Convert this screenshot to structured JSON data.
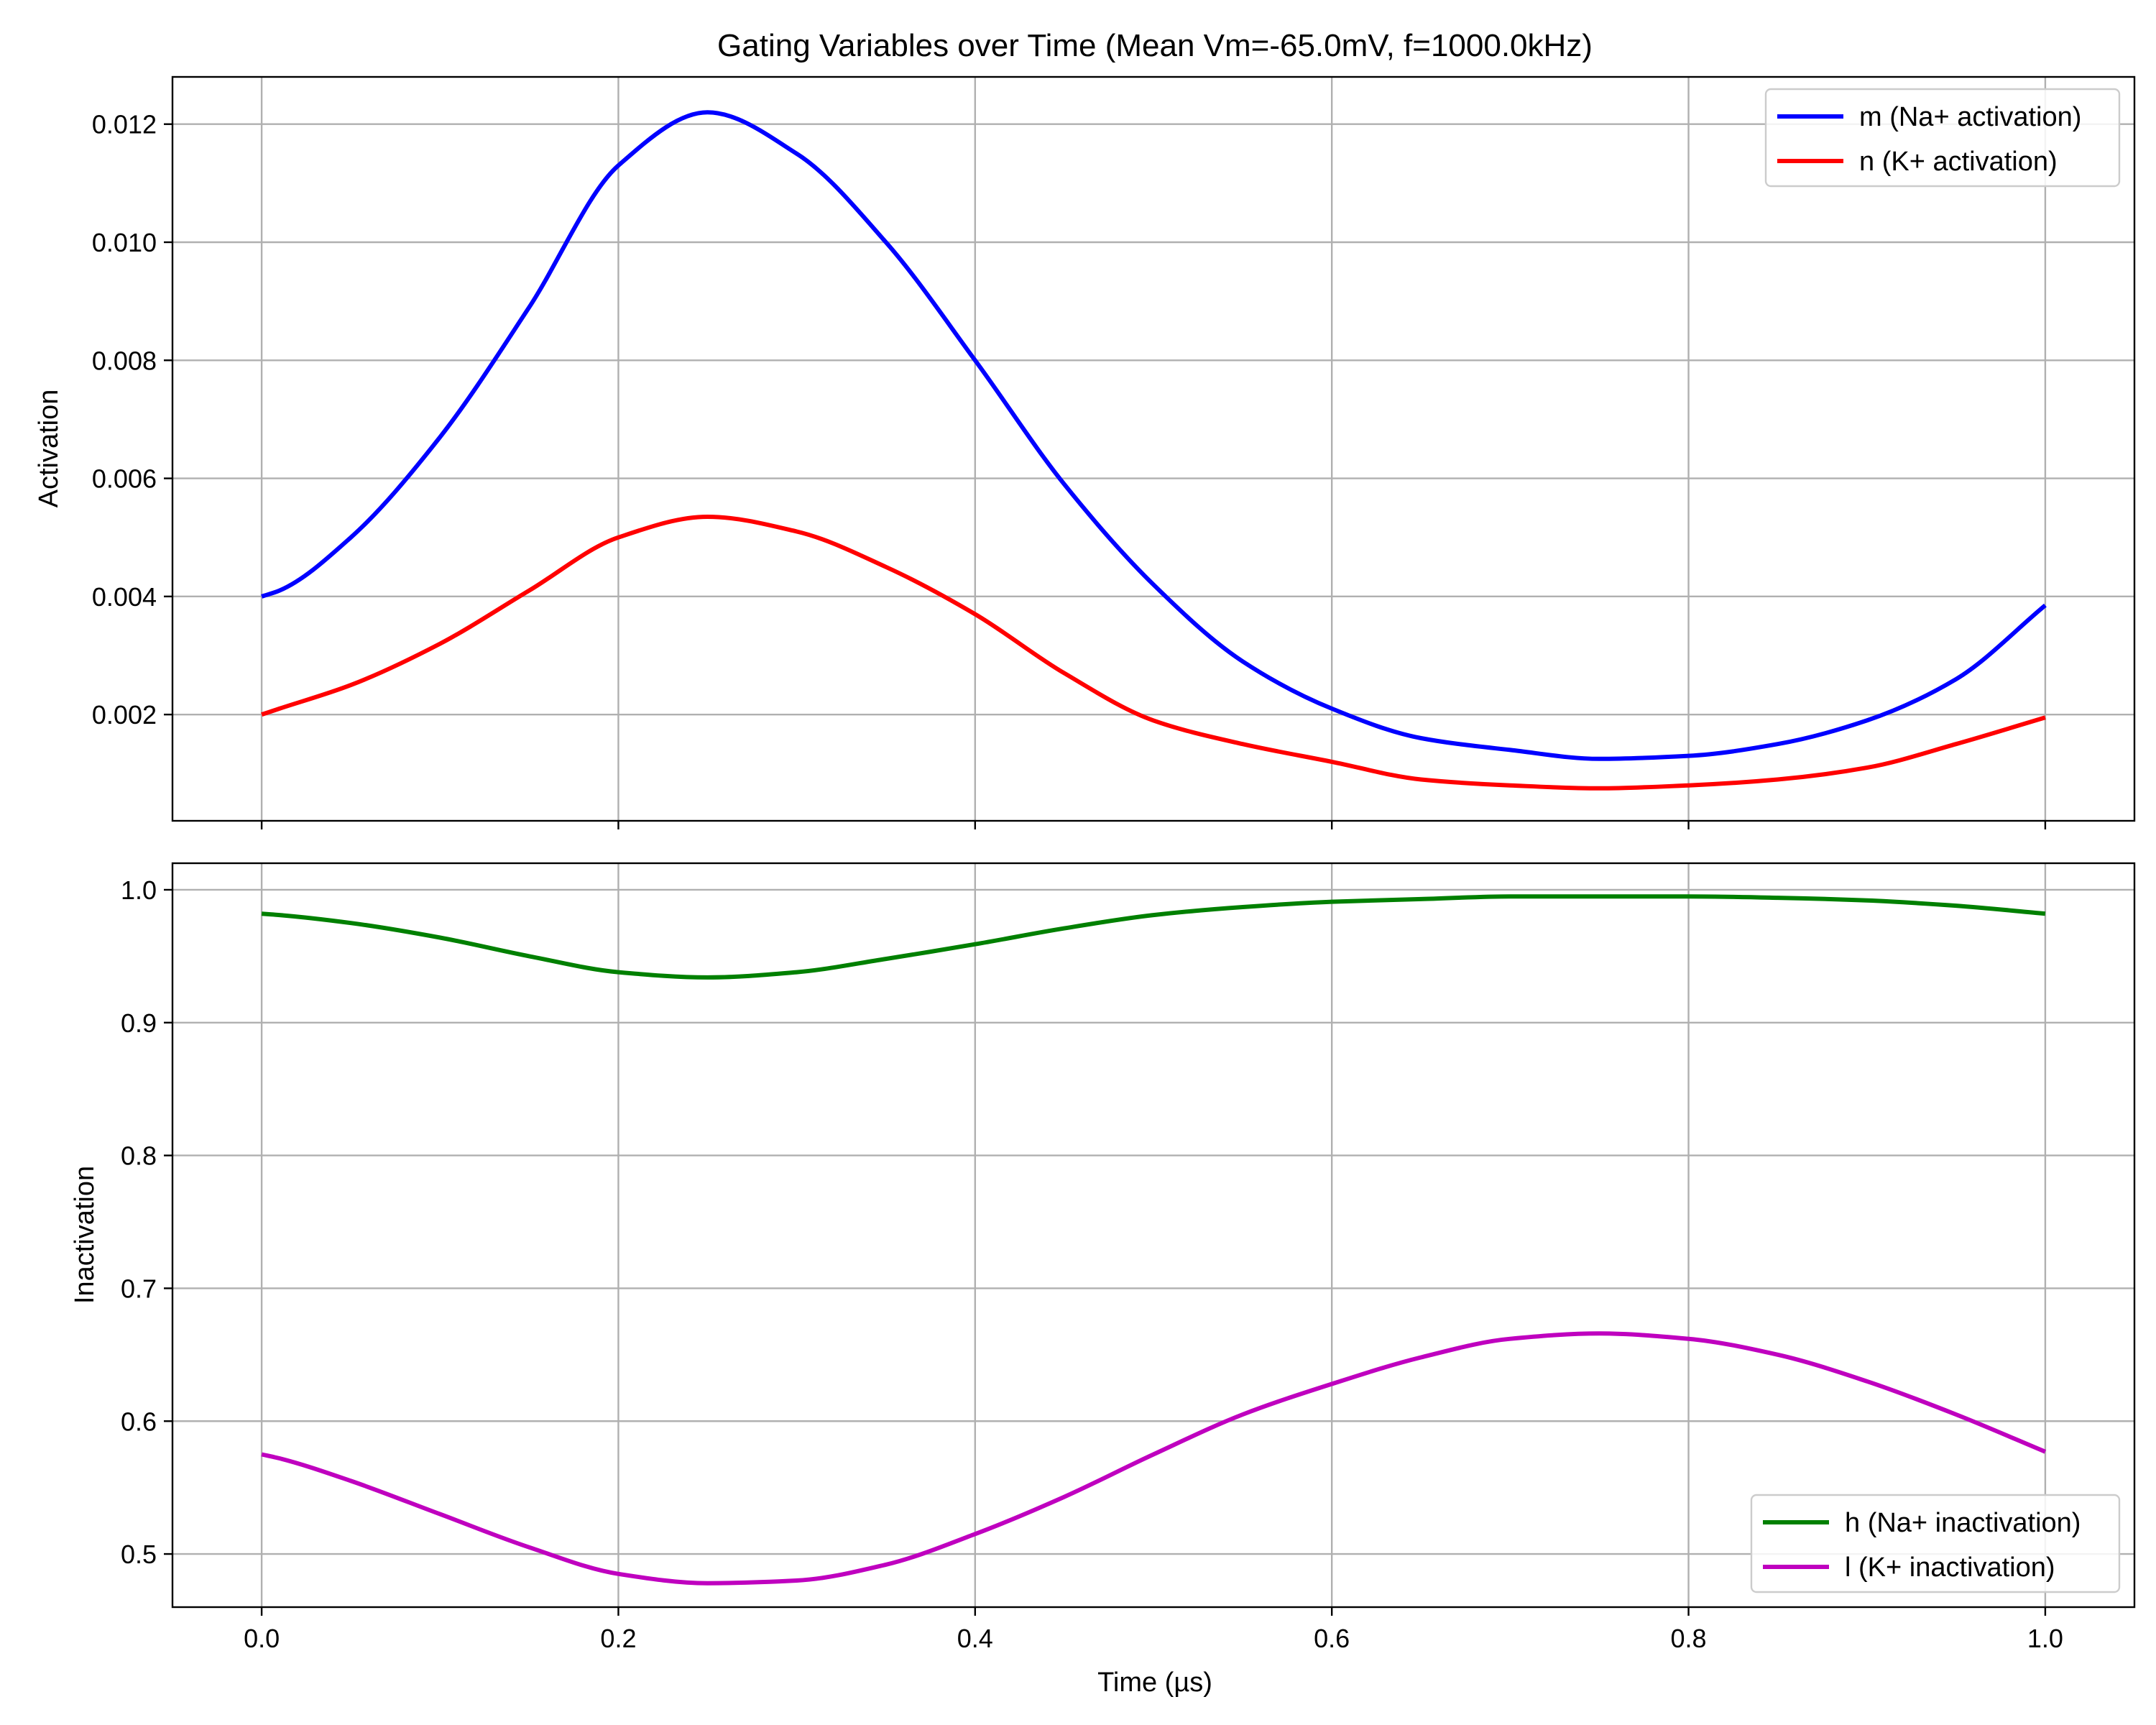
{
  "chart_data": [
    {
      "type": "line",
      "title": "Gating Variables over Time (Mean Vm=-65.0mV, f=1000.0kHz)",
      "xlabel": "",
      "ylabel": "Activation",
      "xlim": [
        -0.05,
        1.05
      ],
      "ylim": [
        0.0002,
        0.0128
      ],
      "x_ticks": [
        0.0,
        0.2,
        0.4,
        0.6,
        0.8,
        1.0
      ],
      "x_tick_labels_shown": false,
      "y_ticks": [
        0.002,
        0.004,
        0.006,
        0.008,
        0.01,
        0.012
      ],
      "y_tick_labels": [
        "0.002",
        "0.004",
        "0.006",
        "0.008",
        "0.010",
        "0.012"
      ],
      "grid": true,
      "legend_position": "upper right",
      "x": [
        0.0,
        0.01,
        0.05,
        0.1,
        0.15,
        0.2,
        0.25,
        0.3,
        0.35,
        0.4,
        0.45,
        0.5,
        0.55,
        0.6,
        0.65,
        0.7,
        0.75,
        0.8,
        0.85,
        0.9,
        0.95,
        1.0
      ],
      "series": [
        {
          "name": "m (Na+ activation)",
          "color": "#0000ff",
          "values": [
            0.004,
            0.0041,
            0.005,
            0.0067,
            0.0089,
            0.0113,
            0.0122,
            0.0115,
            0.01,
            0.008,
            0.0059,
            0.0042,
            0.0029,
            0.0021,
            0.0016,
            0.0014,
            0.00125,
            0.0013,
            0.0015,
            0.0019,
            0.0026,
            0.00385
          ]
        },
        {
          "name": "n (K+ activation)",
          "color": "#ff0000",
          "values": [
            0.002,
            0.0021,
            0.0025,
            0.0032,
            0.0041,
            0.005,
            0.00535,
            0.0051,
            0.0045,
            0.0037,
            0.0027,
            0.0019,
            0.0015,
            0.0012,
            0.0009,
            0.0008,
            0.00075,
            0.0008,
            0.0009,
            0.0011,
            0.0015,
            0.00195
          ]
        }
      ]
    },
    {
      "type": "line",
      "title": "",
      "xlabel": "Time (µs)",
      "ylabel": "Inactivation",
      "xlim": [
        -0.05,
        1.05
      ],
      "ylim": [
        0.46,
        1.02
      ],
      "x_ticks": [
        0.0,
        0.2,
        0.4,
        0.6,
        0.8,
        1.0
      ],
      "x_tick_labels": [
        "0.0",
        "0.2",
        "0.4",
        "0.6",
        "0.8",
        "1.0"
      ],
      "y_ticks": [
        0.5,
        0.6,
        0.7,
        0.8,
        0.9,
        1.0
      ],
      "y_tick_labels": [
        "0.5",
        "0.6",
        "0.7",
        "0.8",
        "0.9",
        "1.0"
      ],
      "grid": true,
      "legend_position": "lower right",
      "x": [
        0.0,
        0.01,
        0.05,
        0.1,
        0.15,
        0.2,
        0.25,
        0.3,
        0.35,
        0.4,
        0.45,
        0.5,
        0.55,
        0.6,
        0.65,
        0.7,
        0.75,
        0.8,
        0.85,
        0.9,
        0.95,
        1.0
      ],
      "series": [
        {
          "name": "h (Na+ inactivation)",
          "color": "#008000",
          "values": [
            0.982,
            0.981,
            0.975,
            0.964,
            0.95,
            0.938,
            0.934,
            0.938,
            0.948,
            0.959,
            0.971,
            0.981,
            0.987,
            0.991,
            0.993,
            0.995,
            0.995,
            0.995,
            0.994,
            0.992,
            0.988,
            0.982
          ]
        },
        {
          "name": "l (K+ inactivation)",
          "color": "#bf00bf",
          "values": [
            0.575,
            0.572,
            0.555,
            0.53,
            0.505,
            0.485,
            0.478,
            0.48,
            0.492,
            0.515,
            0.543,
            0.575,
            0.605,
            0.628,
            0.648,
            0.662,
            0.666,
            0.662,
            0.65,
            0.63,
            0.605,
            0.577
          ]
        }
      ]
    }
  ]
}
